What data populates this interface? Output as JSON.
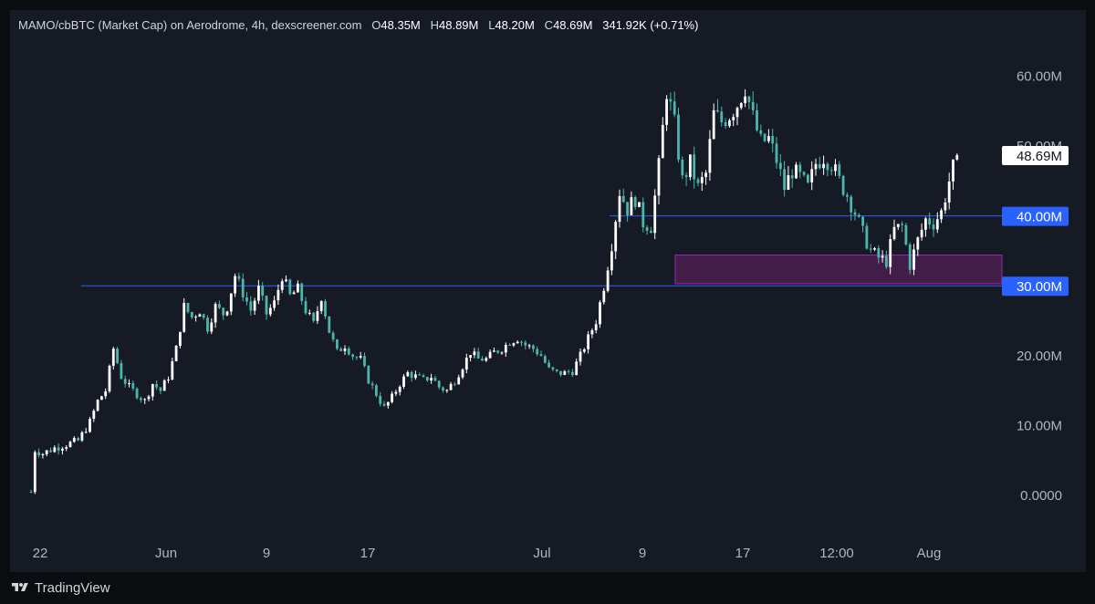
{
  "header": {
    "title": "MAMO/cbBTC (Market Cap) on Aerodrome, 4h, dexscreener.com",
    "open_label": "O",
    "open": "48.35M",
    "high_label": "H",
    "high": "48.89M",
    "low_label": "L",
    "low": "48.20M",
    "close_label": "C",
    "close": "48.69M",
    "change": "341.92K (+0.71%)"
  },
  "branding": {
    "name": "TradingView",
    "logo_icon": "tradingview-logo-icon"
  },
  "colors": {
    "background": "#161a25",
    "candle": "#4db6ac",
    "candle_white": "#ffffff",
    "hline": "#2962ff",
    "zone_fill": "#4a1f4d",
    "zone_border": "#9c27b0",
    "axis_text": "#b2b5be"
  },
  "chart_data": {
    "type": "candlestick",
    "y_axis": {
      "ticks": [
        0,
        10,
        20,
        30,
        40,
        50,
        60
      ],
      "tick_labels": [
        "0.0000",
        "10.00M",
        "20.00M",
        "30.00M",
        "40.00M",
        "50.00M",
        "60.00M"
      ],
      "unit": "M"
    },
    "x_axis": {
      "tick_labels": [
        "22",
        "Jun",
        "9",
        "17",
        "Jul",
        "9",
        "17",
        "12:00",
        "Aug"
      ]
    },
    "price_label": "48.69M",
    "levels": [
      {
        "value": 30.0,
        "label": "30.00M"
      },
      {
        "value": 40.0,
        "label": "40.00M"
      }
    ],
    "zone": {
      "from": 30.3,
      "to": 34.4
    },
    "path": [
      [
        0,
        0.5
      ],
      [
        1,
        6.5
      ],
      [
        3,
        6.0
      ],
      [
        6,
        6.8
      ],
      [
        9,
        7.3
      ],
      [
        12,
        7.8
      ],
      [
        15,
        10.5
      ],
      [
        17,
        13.5
      ],
      [
        19,
        15.0
      ],
      [
        21,
        21.0
      ],
      [
        23,
        17.0
      ],
      [
        25,
        15.5
      ],
      [
        27,
        14.5
      ],
      [
        29,
        13.5
      ],
      [
        31,
        16.0
      ],
      [
        33,
        15.0
      ],
      [
        35,
        17.0
      ],
      [
        37,
        21.0
      ],
      [
        39,
        27.0
      ],
      [
        41,
        25.5
      ],
      [
        43,
        26.5
      ],
      [
        45,
        24.0
      ],
      [
        47,
        27.0
      ],
      [
        49,
        26.0
      ],
      [
        50,
        27.0
      ],
      [
        52,
        31.5
      ],
      [
        54,
        29.0
      ],
      [
        56,
        26.5
      ],
      [
        58,
        29.5
      ],
      [
        60,
        26.0
      ],
      [
        62,
        27.5
      ],
      [
        64,
        31.5
      ],
      [
        66,
        28.5
      ],
      [
        68,
        29.5
      ],
      [
        70,
        26.5
      ],
      [
        72,
        24.5
      ],
      [
        74,
        28.5
      ],
      [
        76,
        23.5
      ],
      [
        78,
        20.5
      ],
      [
        80,
        21.5
      ],
      [
        82,
        20.0
      ],
      [
        84,
        19.5
      ],
      [
        86,
        16.5
      ],
      [
        88,
        14.5
      ],
      [
        90,
        12.5
      ],
      [
        92,
        14.0
      ],
      [
        94,
        16.0
      ],
      [
        96,
        17.5
      ],
      [
        98,
        17.0
      ],
      [
        100,
        16.5
      ],
      [
        102,
        17.0
      ],
      [
        104,
        15.5
      ],
      [
        106,
        15.0
      ],
      [
        108,
        16.5
      ],
      [
        110,
        18.5
      ],
      [
        112,
        20.5
      ],
      [
        114,
        19.5
      ],
      [
        116,
        19.5
      ],
      [
        118,
        20.5
      ],
      [
        120,
        21.0
      ],
      [
        122,
        22.0
      ],
      [
        124,
        22.5
      ],
      [
        126,
        21.5
      ],
      [
        128,
        21.0
      ],
      [
        130,
        20.0
      ],
      [
        132,
        18.0
      ],
      [
        134,
        17.5
      ],
      [
        136,
        17.5
      ],
      [
        138,
        17.8
      ],
      [
        140,
        20.0
      ],
      [
        142,
        22.5
      ],
      [
        144,
        25.0
      ],
      [
        146,
        30.0
      ],
      [
        148,
        36.0
      ],
      [
        150,
        43.5
      ],
      [
        152,
        41.0
      ],
      [
        154,
        42.5
      ],
      [
        156,
        39.0
      ],
      [
        158,
        38.5
      ],
      [
        160,
        47.0
      ],
      [
        162,
        58.0
      ],
      [
        164,
        53.0
      ],
      [
        166,
        45.0
      ],
      [
        168,
        47.5
      ],
      [
        170,
        44.0
      ],
      [
        172,
        46.0
      ],
      [
        174,
        54.5
      ],
      [
        176,
        53.5
      ],
      [
        178,
        54.5
      ],
      [
        180,
        56.0
      ],
      [
        182,
        58.5
      ],
      [
        184,
        54.0
      ],
      [
        186,
        50.5
      ],
      [
        188,
        51.0
      ],
      [
        190,
        48.0
      ],
      [
        192,
        44.0
      ],
      [
        194,
        46.5
      ],
      [
        196,
        45.5
      ],
      [
        198,
        44.0
      ],
      [
        200,
        47.5
      ],
      [
        202,
        48.5
      ],
      [
        204,
        47.5
      ],
      [
        206,
        45.0
      ],
      [
        208,
        43.0
      ],
      [
        210,
        40.5
      ],
      [
        212,
        37.5
      ],
      [
        214,
        35.0
      ],
      [
        216,
        34.0
      ],
      [
        218,
        33.5
      ],
      [
        220,
        38.0
      ],
      [
        222,
        38.5
      ],
      [
        224,
        33.0
      ],
      [
        226,
        36.5
      ],
      [
        228,
        39.5
      ],
      [
        230,
        39.0
      ],
      [
        232,
        40.5
      ],
      [
        234,
        45.0
      ],
      [
        236,
        48.7
      ]
    ]
  }
}
